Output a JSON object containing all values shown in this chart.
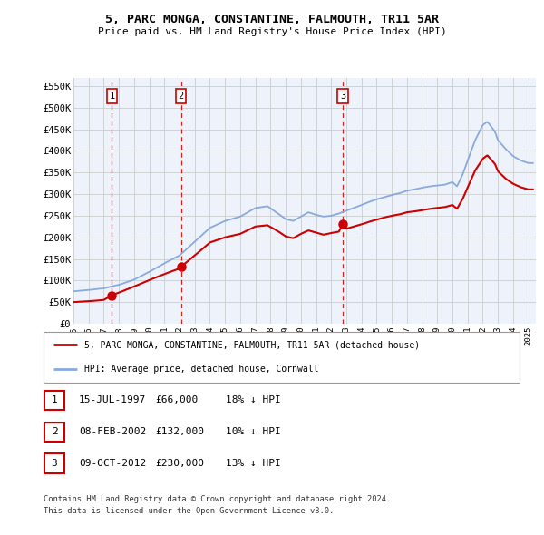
{
  "title": "5, PARC MONGA, CONSTANTINE, FALMOUTH, TR11 5AR",
  "subtitle": "Price paid vs. HM Land Registry's House Price Index (HPI)",
  "ylim": [
    0,
    570000
  ],
  "yticks": [
    0,
    50000,
    100000,
    150000,
    200000,
    250000,
    300000,
    350000,
    400000,
    450000,
    500000,
    550000
  ],
  "ytick_labels": [
    "£0",
    "£50K",
    "£100K",
    "£150K",
    "£200K",
    "£250K",
    "£300K",
    "£350K",
    "£400K",
    "£450K",
    "£500K",
    "£550K"
  ],
  "xlim_start": 1995.0,
  "xlim_end": 2025.5,
  "xtick_years": [
    1995,
    1996,
    1997,
    1998,
    1999,
    2000,
    2001,
    2002,
    2003,
    2004,
    2005,
    2006,
    2007,
    2008,
    2009,
    2010,
    2011,
    2012,
    2013,
    2014,
    2015,
    2016,
    2017,
    2018,
    2019,
    2020,
    2021,
    2022,
    2023,
    2024,
    2025
  ],
  "sale_color": "#cc0000",
  "hpi_color": "#88aadd",
  "grid_color": "#cccccc",
  "bg_color": "#eef2fa",
  "sale_dates": [
    1997.54,
    2002.1,
    2012.77
  ],
  "sale_prices": [
    66000,
    132000,
    230000
  ],
  "sale_labels": [
    "1",
    "2",
    "3"
  ],
  "vline_color": "#cc0000",
  "legend_label_sale": "5, PARC MONGA, CONSTANTINE, FALMOUTH, TR11 5AR (detached house)",
  "legend_label_hpi": "HPI: Average price, detached house, Cornwall",
  "table_rows": [
    {
      "num": "1",
      "date": "15-JUL-1997",
      "price": "£66,000",
      "hpi": "18% ↓ HPI"
    },
    {
      "num": "2",
      "date": "08-FEB-2002",
      "price": "£132,000",
      "hpi": "10% ↓ HPI"
    },
    {
      "num": "3",
      "date": "09-OCT-2012",
      "price": "£230,000",
      "hpi": "13% ↓ HPI"
    }
  ],
  "footnote1": "Contains HM Land Registry data © Crown copyright and database right 2024.",
  "footnote2": "This data is licensed under the Open Government Licence v3.0.",
  "hpi_keypoints": [
    [
      1995.0,
      75000
    ],
    [
      1996.0,
      78000
    ],
    [
      1997.0,
      82000
    ],
    [
      1998.0,
      90000
    ],
    [
      1999.0,
      102000
    ],
    [
      2000.0,
      120000
    ],
    [
      2001.0,
      140000
    ],
    [
      2002.0,
      158000
    ],
    [
      2003.0,
      190000
    ],
    [
      2004.0,
      222000
    ],
    [
      2005.0,
      238000
    ],
    [
      2006.0,
      248000
    ],
    [
      2007.0,
      268000
    ],
    [
      2007.8,
      272000
    ],
    [
      2008.5,
      255000
    ],
    [
      2009.0,
      242000
    ],
    [
      2009.5,
      238000
    ],
    [
      2010.0,
      248000
    ],
    [
      2010.5,
      258000
    ],
    [
      2011.0,
      252000
    ],
    [
      2011.5,
      248000
    ],
    [
      2012.0,
      250000
    ],
    [
      2012.5,
      255000
    ],
    [
      2013.0,
      262000
    ],
    [
      2013.5,
      268000
    ],
    [
      2014.0,
      275000
    ],
    [
      2014.5,
      282000
    ],
    [
      2015.0,
      288000
    ],
    [
      2015.5,
      293000
    ],
    [
      2016.0,
      298000
    ],
    [
      2016.5,
      302000
    ],
    [
      2017.0,
      308000
    ],
    [
      2017.5,
      311000
    ],
    [
      2018.0,
      315000
    ],
    [
      2018.5,
      318000
    ],
    [
      2019.0,
      320000
    ],
    [
      2019.5,
      322000
    ],
    [
      2020.0,
      328000
    ],
    [
      2020.3,
      318000
    ],
    [
      2020.7,
      348000
    ],
    [
      2021.0,
      378000
    ],
    [
      2021.5,
      425000
    ],
    [
      2022.0,
      460000
    ],
    [
      2022.3,
      468000
    ],
    [
      2022.8,
      445000
    ],
    [
      2023.0,
      425000
    ],
    [
      2023.5,
      405000
    ],
    [
      2024.0,
      388000
    ],
    [
      2024.5,
      378000
    ],
    [
      2025.0,
      372000
    ]
  ],
  "sale_keypoints": [
    [
      1995.0,
      50000
    ],
    [
      1996.0,
      52000
    ],
    [
      1997.0,
      55000
    ],
    [
      1997.54,
      66000
    ],
    [
      1998.0,
      72000
    ],
    [
      1999.0,
      86000
    ],
    [
      2000.0,
      101000
    ],
    [
      2001.0,
      115000
    ],
    [
      2002.0,
      128000
    ],
    [
      2002.1,
      132000
    ],
    [
      2003.0,
      158000
    ],
    [
      2004.0,
      188000
    ],
    [
      2005.0,
      200000
    ],
    [
      2006.0,
      208000
    ],
    [
      2007.0,
      225000
    ],
    [
      2007.8,
      228000
    ],
    [
      2008.5,
      214000
    ],
    [
      2009.0,
      202000
    ],
    [
      2009.5,
      198000
    ],
    [
      2010.0,
      208000
    ],
    [
      2010.5,
      216000
    ],
    [
      2011.0,
      211000
    ],
    [
      2011.5,
      206000
    ],
    [
      2012.0,
      210000
    ],
    [
      2012.5,
      213000
    ],
    [
      2012.77,
      230000
    ],
    [
      2013.0,
      220000
    ],
    [
      2013.5,
      225000
    ],
    [
      2014.0,
      230000
    ],
    [
      2014.5,
      236000
    ],
    [
      2015.0,
      241000
    ],
    [
      2015.5,
      246000
    ],
    [
      2016.0,
      250000
    ],
    [
      2016.5,
      253000
    ],
    [
      2017.0,
      258000
    ],
    [
      2017.5,
      260000
    ],
    [
      2018.0,
      263000
    ],
    [
      2018.5,
      266000
    ],
    [
      2019.0,
      268000
    ],
    [
      2019.5,
      270000
    ],
    [
      2020.0,
      275000
    ],
    [
      2020.3,
      266000
    ],
    [
      2020.7,
      291000
    ],
    [
      2021.0,
      316000
    ],
    [
      2021.5,
      355000
    ],
    [
      2022.0,
      382000
    ],
    [
      2022.3,
      390000
    ],
    [
      2022.8,
      370000
    ],
    [
      2023.0,
      353000
    ],
    [
      2023.5,
      336000
    ],
    [
      2024.0,
      324000
    ],
    [
      2024.5,
      316000
    ],
    [
      2025.0,
      311000
    ]
  ]
}
